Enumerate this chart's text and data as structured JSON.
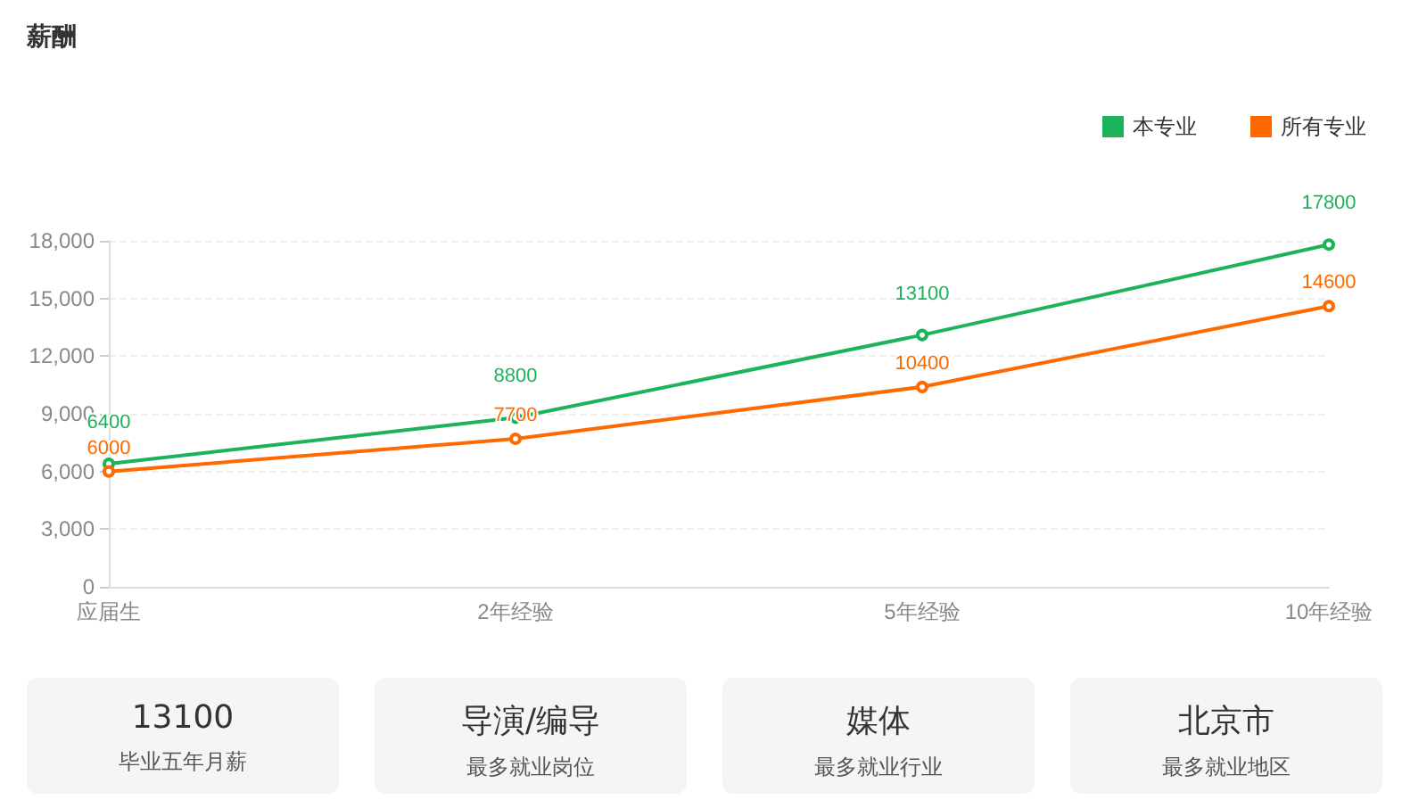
{
  "chart_data": {
    "type": "line",
    "title": "薪酬",
    "categories": [
      "应届生",
      "2年经验",
      "5年经验",
      "10年经验"
    ],
    "series": [
      {
        "name": "本专业",
        "color": "#1db35b",
        "values": [
          6400,
          8800,
          13100,
          17800
        ]
      },
      {
        "name": "所有专业",
        "color": "#ff6a00",
        "values": [
          6000,
          7700,
          10400,
          14600
        ]
      }
    ],
    "ylim": [
      0,
      18000
    ],
    "yticks": [
      0,
      {
        "value": 3000,
        "label": "3,000"
      },
      {
        "value": 6000,
        "label": "6,000"
      },
      {
        "value": 9000,
        "label": "9,000"
      },
      {
        "value": 12000,
        "label": "12,000"
      },
      {
        "value": 15000,
        "label": "15,000"
      },
      {
        "value": 18000,
        "label": "18,000"
      }
    ],
    "grid": "y",
    "legend": "top right",
    "marker": "circle",
    "line_style": "solid",
    "data_labels": true,
    "annotations": [
      "13100",
      "毕业五年月薪",
      "导演/编导",
      "最多就业岗位",
      "媒体",
      "最多就业行业",
      "北京市",
      "最多就业地区"
    ]
  }
}
